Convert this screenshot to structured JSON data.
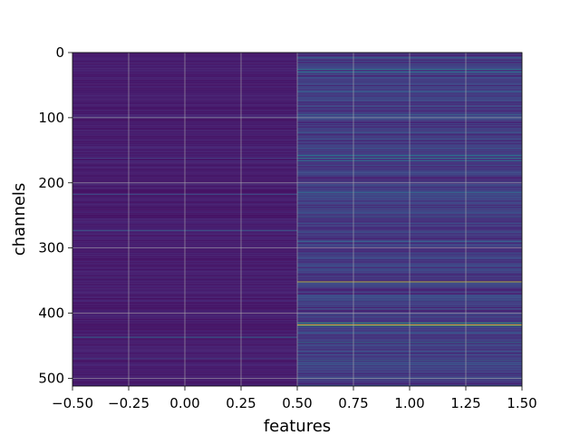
{
  "chart_data": {
    "type": "heatmap",
    "title": "",
    "xlabel": "features",
    "ylabel": "channels",
    "xlim": [
      -0.5,
      1.5
    ],
    "ylim": [
      512,
      0
    ],
    "y_inverted": true,
    "grid": true,
    "colormap": "viridis",
    "x_ticks": [
      -0.5,
      -0.25,
      0.0,
      0.25,
      0.5,
      0.75,
      1.0,
      1.25,
      1.5
    ],
    "x_tick_labels": [
      "−0.50",
      "−0.25",
      "0.00",
      "0.25",
      "0.50",
      "0.75",
      "1.00",
      "1.25",
      "1.50"
    ],
    "y_ticks": [
      0,
      100,
      200,
      300,
      400,
      500
    ],
    "y_tick_labels": [
      "0",
      "100",
      "200",
      "300",
      "400",
      "500"
    ],
    "columns": [
      {
        "feature": 0,
        "base_level": 0.06,
        "noise_level": 0.08,
        "highlights": [
          {
            "channel": 100,
            "value": 0.28
          },
          {
            "channel": 162,
            "value": 0.26
          },
          {
            "channel": 218,
            "value": 0.34
          },
          {
            "channel": 273,
            "value": 0.42
          },
          {
            "channel": 345,
            "value": 0.22
          },
          {
            "channel": 437,
            "value": 0.46
          },
          {
            "channel": 470,
            "value": 0.24
          }
        ]
      },
      {
        "feature": 1,
        "base_level": 0.12,
        "noise_level": 0.2,
        "highlights": [
          {
            "channel": 8,
            "value": 0.45
          },
          {
            "channel": 18,
            "value": 0.4
          },
          {
            "channel": 26,
            "value": 0.55
          },
          {
            "channel": 30,
            "value": 0.48
          },
          {
            "channel": 60,
            "value": 0.4
          },
          {
            "channel": 95,
            "value": 0.45
          },
          {
            "channel": 158,
            "value": 0.5
          },
          {
            "channel": 162,
            "value": 0.58
          },
          {
            "channel": 166,
            "value": 0.52
          },
          {
            "channel": 215,
            "value": 0.45
          },
          {
            "channel": 253,
            "value": 0.42
          },
          {
            "channel": 290,
            "value": 0.4
          },
          {
            "channel": 352,
            "value": 0.95
          },
          {
            "channel": 380,
            "value": 0.4
          },
          {
            "channel": 415,
            "value": 0.75
          },
          {
            "channel": 418,
            "value": 1.0
          },
          {
            "channel": 420,
            "value": 0.7
          },
          {
            "channel": 445,
            "value": 0.55
          },
          {
            "channel": 472,
            "value": 0.45
          },
          {
            "channel": 500,
            "value": 0.4
          }
        ]
      }
    ]
  }
}
